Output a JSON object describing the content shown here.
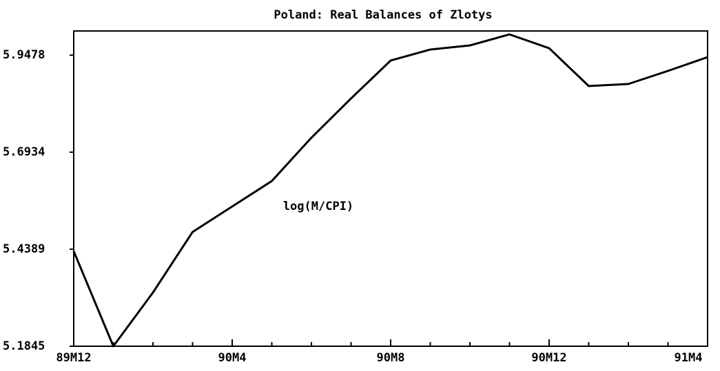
{
  "chart_data": {
    "type": "line",
    "title": "Poland: Real Balances of Zlotys",
    "annotation": "log(M/CPI)",
    "categories": [
      "89M12",
      null,
      null,
      null,
      "90M4",
      null,
      null,
      null,
      "90M8",
      null,
      null,
      null,
      "90M12",
      null,
      null,
      null,
      "91M4"
    ],
    "series": [
      {
        "name": "log(M/CPI)",
        "color": "#000000",
        "values": [
          5.4336,
          5.1845,
          5.3253,
          5.4841,
          5.5509,
          5.6177,
          5.7314,
          5.8343,
          5.9336,
          5.9625,
          5.9733,
          6.0022,
          5.966,
          5.8668,
          5.8722,
          5.9065,
          5.9426
        ]
      }
    ],
    "ylim": [
      5.1845,
      6.0112
    ],
    "yticks": [
      5.1845,
      5.4389,
      5.6934,
      5.9478
    ],
    "grid": false
  }
}
